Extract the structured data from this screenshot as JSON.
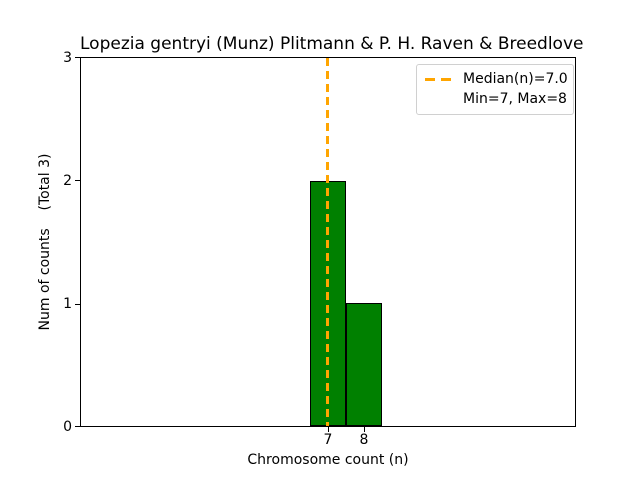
{
  "chart_data": {
    "type": "bar",
    "title": "Lopezia gentryi (Munz) Plitmann & P. H. Raven & Breedlove",
    "xlabel": "Chromosome count (n)",
    "ylabel": "Num of counts    (Total 3)",
    "categories": [
      7,
      8
    ],
    "values": [
      2,
      1
    ],
    "total": 3,
    "bar_color": "#008000",
    "bar_edge_color": "#000000",
    "median_line": {
      "x": 7.0,
      "color": "#FFA500",
      "style": "dashed"
    },
    "stats": {
      "median": 7.0,
      "min": 7,
      "max": 8
    },
    "ylim": [
      0,
      3
    ],
    "yticks": [
      0,
      1,
      2,
      3
    ],
    "xticks": [
      7,
      8
    ],
    "grid": false,
    "legend_position": "upper right"
  },
  "title": "Lopezia gentryi (Munz) Plitmann & P. H. Raven & Breedlove",
  "axes": {
    "xlabel": "Chromosome count (n)",
    "ylabel": "Num of counts    (Total 3)",
    "yticks": [
      "3",
      "2",
      "1",
      "0"
    ],
    "xticks": [
      "7",
      "8"
    ]
  },
  "legend": {
    "entries": [
      {
        "label": "Median(n)=7.0",
        "sample": "orange-dashed-line"
      },
      {
        "label": "Min=7, Max=8",
        "sample": "none"
      }
    ]
  }
}
